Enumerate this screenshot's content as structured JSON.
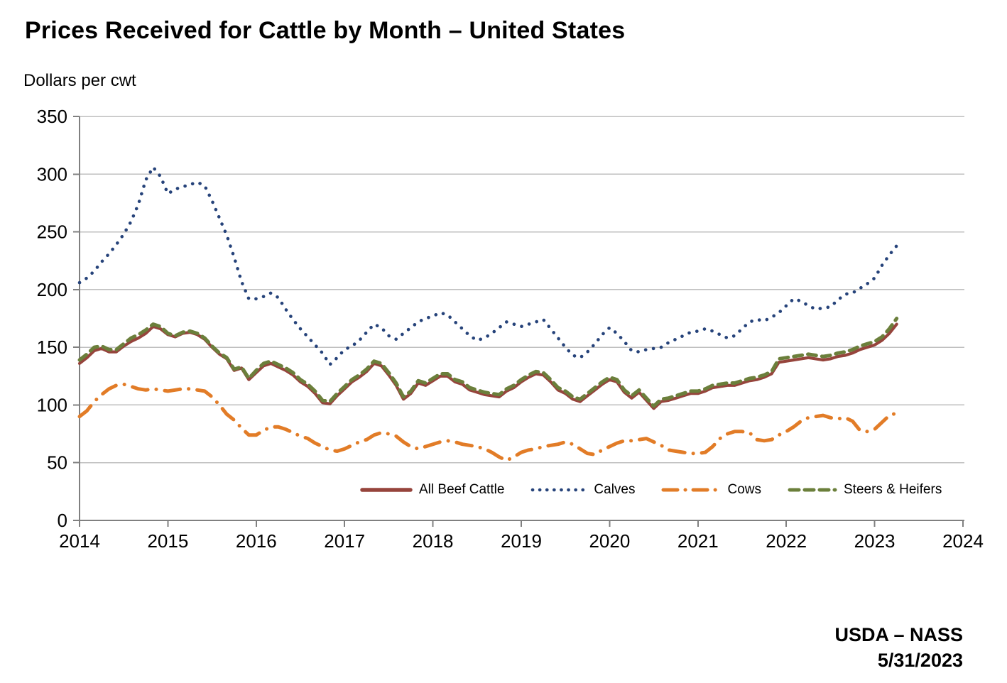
{
  "page": {
    "title": "Prices Received for Cattle by Month – United States",
    "y_axis_label": "Dollars per cwt"
  },
  "attribution": {
    "line1": "USDA – NASS",
    "line2": "5/31/2023"
  },
  "legend": {
    "position": "inside-bottom",
    "items": [
      "All Beef Cattle",
      "Calves",
      "Cows",
      "Steers & Heifers"
    ]
  },
  "layout": {
    "background": "#FFFFFF",
    "axis_color": "#808080",
    "grid_color": "#BFBFBF",
    "text_color": "#000000"
  },
  "chart_data": {
    "type": "line",
    "title": "Prices Received for Cattle by Month – United States",
    "ylabel": "Dollars per cwt",
    "xlabel": "",
    "ylim": [
      0,
      350
    ],
    "y_ticks": [
      0,
      50,
      100,
      150,
      200,
      250,
      300,
      350
    ],
    "x_tick_years": [
      "2014",
      "2015",
      "2016",
      "2017",
      "2018",
      "2019",
      "2020",
      "2021",
      "2022",
      "2023",
      "2024"
    ],
    "x_start_month": "2014-01",
    "x_end_month": "2023-04",
    "grid": "horizontal",
    "legend_position": "inside-bottom",
    "draw_order": [
      1,
      2,
      0,
      3
    ],
    "series": [
      {
        "name": "All Beef Cattle",
        "color": "#96443C",
        "style": "solid",
        "values": [
          136,
          141,
          147,
          149,
          146,
          146,
          151,
          155,
          158,
          162,
          168,
          166,
          161,
          159,
          162,
          163,
          161,
          157,
          150,
          144,
          140,
          130,
          132,
          122,
          128,
          134,
          136,
          133,
          130,
          126,
          120,
          116,
          110,
          102,
          101,
          108,
          114,
          120,
          124,
          129,
          136,
          134,
          126,
          117,
          105,
          110,
          119,
          117,
          121,
          125,
          125,
          120,
          118,
          113,
          111,
          109,
          108,
          107,
          112,
          115,
          120,
          124,
          127,
          126,
          120,
          113,
          110,
          105,
          103,
          108,
          113,
          118,
          122,
          120,
          111,
          106,
          111,
          104,
          97,
          103,
          104,
          106,
          108,
          110,
          110,
          112,
          115,
          116,
          117,
          117,
          119,
          121,
          122,
          124,
          127,
          137,
          138,
          139,
          140,
          141,
          140,
          139,
          140,
          142,
          143,
          145,
          148,
          150,
          152,
          156,
          162,
          170
        ]
      },
      {
        "name": "Calves",
        "color": "#26437A",
        "style": "dotted",
        "values": [
          206,
          210,
          216,
          224,
          231,
          239,
          248,
          259,
          274,
          295,
          306,
          298,
          283,
          287,
          289,
          291,
          293,
          290,
          277,
          262,
          247,
          228,
          207,
          192,
          192,
          194,
          197,
          193,
          183,
          174,
          166,
          159,
          152,
          145,
          135,
          141,
          148,
          151,
          156,
          163,
          170,
          167,
          160,
          157,
          162,
          167,
          172,
          175,
          177,
          180,
          178,
          172,
          166,
          160,
          156,
          158,
          162,
          167,
          172,
          170,
          168,
          170,
          172,
          174,
          166,
          158,
          150,
          143,
          141,
          146,
          153,
          161,
          167,
          162,
          155,
          147,
          146,
          148,
          149,
          150,
          154,
          157,
          160,
          163,
          164,
          166,
          164,
          161,
          158,
          160,
          166,
          172,
          174,
          173,
          176,
          180,
          186,
          192,
          190,
          186,
          183,
          184,
          185,
          191,
          196,
          197,
          201,
          205,
          210,
          221,
          230,
          238
        ]
      },
      {
        "name": "Cows",
        "color": "#E27C27",
        "style": "dashdot",
        "values": [
          90,
          95,
          103,
          109,
          114,
          117,
          118,
          116,
          114,
          113,
          114,
          113,
          112,
          113,
          114,
          114,
          113,
          112,
          107,
          100,
          92,
          87,
          80,
          74,
          74,
          78,
          81,
          81,
          79,
          76,
          73,
          71,
          67,
          64,
          61,
          60,
          62,
          65,
          68,
          70,
          74,
          76,
          75,
          73,
          68,
          64,
          62,
          64,
          66,
          68,
          69,
          68,
          66,
          65,
          64,
          62,
          59,
          55,
          52,
          55,
          59,
          61,
          62,
          64,
          65,
          66,
          68,
          66,
          62,
          58,
          57,
          61,
          64,
          67,
          69,
          69,
          70,
          71,
          68,
          65,
          61,
          60,
          59,
          58,
          58,
          59,
          64,
          71,
          75,
          77,
          77,
          76,
          70,
          69,
          70,
          74,
          77,
          81,
          86,
          89,
          90,
          91,
          89,
          88,
          89,
          86,
          78,
          77,
          79,
          85,
          91,
          93
        ]
      },
      {
        "name": "Steers & Heifers",
        "color": "#6B7F3B",
        "style": "dashed",
        "values": [
          139,
          144,
          150,
          151,
          148,
          148,
          153,
          158,
          161,
          165,
          170,
          168,
          162,
          160,
          163,
          164,
          162,
          158,
          151,
          145,
          141,
          131,
          133,
          123,
          130,
          136,
          138,
          135,
          132,
          128,
          122,
          118,
          112,
          104,
          103,
          110,
          116,
          122,
          126,
          131,
          138,
          136,
          128,
          119,
          107,
          112,
          121,
          119,
          123,
          127,
          127,
          122,
          120,
          115,
          113,
          111,
          110,
          109,
          114,
          117,
          122,
          126,
          129,
          128,
          122,
          115,
          112,
          107,
          105,
          110,
          115,
          120,
          124,
          122,
          113,
          108,
          113,
          106,
          99,
          105,
          106,
          108,
          110,
          112,
          112,
          114,
          117,
          118,
          119,
          119,
          121,
          123,
          124,
          126,
          129,
          140,
          141,
          142,
          143,
          144,
          143,
          142,
          143,
          145,
          146,
          148,
          151,
          153,
          155,
          159,
          166,
          175
        ]
      }
    ]
  }
}
